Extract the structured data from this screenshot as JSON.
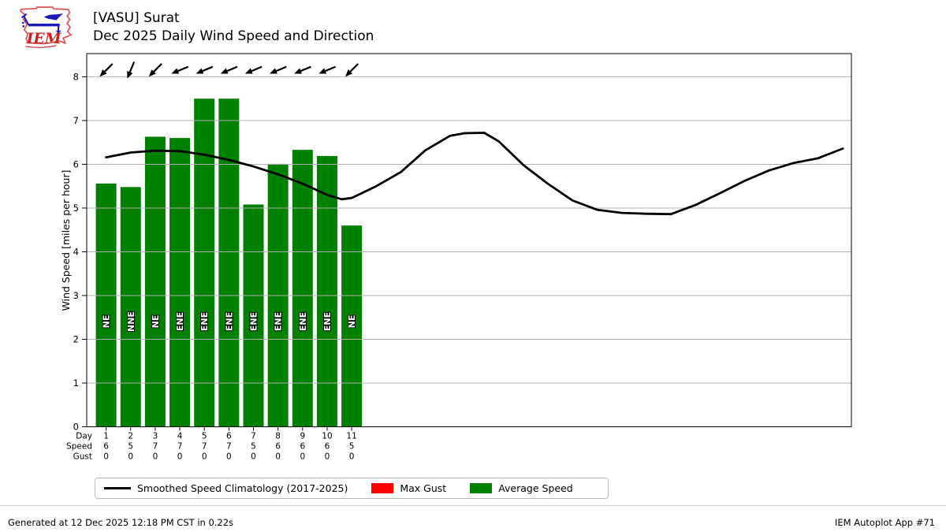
{
  "header": {
    "title_line1": "[VASU] Surat",
    "title_line2": "Dec 2025 Daily Wind Speed and Direction"
  },
  "logo": {
    "text": "IEM"
  },
  "footer": {
    "generated": "Generated at 12 Dec 2025 12:18 PM CST in 0.22s",
    "app": "IEM Autoplot App #71"
  },
  "chart_data": {
    "type": "bar",
    "title": "Dec 2025 Daily Wind Speed and Direction",
    "station": "[VASU] Surat",
    "ylabel": "Wind Speed [miles per hour]",
    "ylim": [
      0,
      8.53
    ],
    "yticks": [
      0,
      1,
      2,
      3,
      4,
      5,
      6,
      7,
      8
    ],
    "xlim": [
      0.21,
      31.35
    ],
    "grid": true,
    "grid_color": "#b0b0b0",
    "legend_position": "bottom-left",
    "days": [
      1,
      2,
      3,
      4,
      5,
      6,
      7,
      8,
      9,
      10,
      11
    ],
    "directions": [
      "NE",
      "NNE",
      "NE",
      "ENE",
      "ENE",
      "ENE",
      "ENE",
      "ENE",
      "ENE",
      "ENE",
      "NE"
    ],
    "wind_from_deg": [
      45,
      22.5,
      45,
      67.5,
      67.5,
      67.5,
      67.5,
      67.5,
      67.5,
      67.5,
      45
    ],
    "arrow_row_value": 8.15,
    "series": [
      {
        "name": "Average Speed",
        "type": "bar",
        "color": "#008000",
        "values": [
          5.56,
          5.48,
          6.63,
          6.6,
          7.5,
          7.5,
          5.08,
          6.01,
          6.33,
          6.19,
          4.6
        ]
      },
      {
        "name": "Max Gust",
        "type": "bar",
        "color": "#ff0000",
        "values": [
          0,
          0,
          0,
          0,
          0,
          0,
          0,
          0,
          0,
          0,
          0
        ]
      },
      {
        "name": "Smoothed Speed Climatology (2017-2025)",
        "type": "line",
        "color": "#000000",
        "points": [
          [
            1,
            6.16
          ],
          [
            2,
            6.27
          ],
          [
            3,
            6.31
          ],
          [
            4,
            6.3
          ],
          [
            5,
            6.22
          ],
          [
            6,
            6.1
          ],
          [
            7,
            5.95
          ],
          [
            8,
            5.77
          ],
          [
            9,
            5.56
          ],
          [
            10,
            5.3
          ],
          [
            10.6,
            5.2
          ],
          [
            11,
            5.23
          ],
          [
            12,
            5.5
          ],
          [
            13,
            5.82
          ],
          [
            14,
            6.32
          ],
          [
            15,
            6.65
          ],
          [
            15.6,
            6.71
          ],
          [
            16.4,
            6.72
          ],
          [
            17,
            6.52
          ],
          [
            18,
            5.98
          ],
          [
            19,
            5.55
          ],
          [
            20,
            5.17
          ],
          [
            21,
            4.96
          ],
          [
            22,
            4.89
          ],
          [
            23,
            4.87
          ],
          [
            24,
            4.86
          ],
          [
            25,
            5.07
          ],
          [
            26,
            5.34
          ],
          [
            27,
            5.62
          ],
          [
            28,
            5.86
          ],
          [
            29,
            6.03
          ],
          [
            30,
            6.14
          ],
          [
            31,
            6.36
          ]
        ]
      }
    ],
    "x_rows": {
      "labels": [
        "Day",
        "Speed",
        "Gust"
      ],
      "day": [
        "1",
        "2",
        "3",
        "4",
        "5",
        "6",
        "7",
        "8",
        "9",
        "10",
        "11"
      ],
      "speed": [
        "6",
        "5",
        "7",
        "7",
        "7",
        "7",
        "5",
        "6",
        "6",
        "6",
        "5"
      ],
      "gust": [
        "0",
        "0",
        "0",
        "0",
        "0",
        "0",
        "0",
        "0",
        "0",
        "0",
        "0"
      ]
    }
  }
}
